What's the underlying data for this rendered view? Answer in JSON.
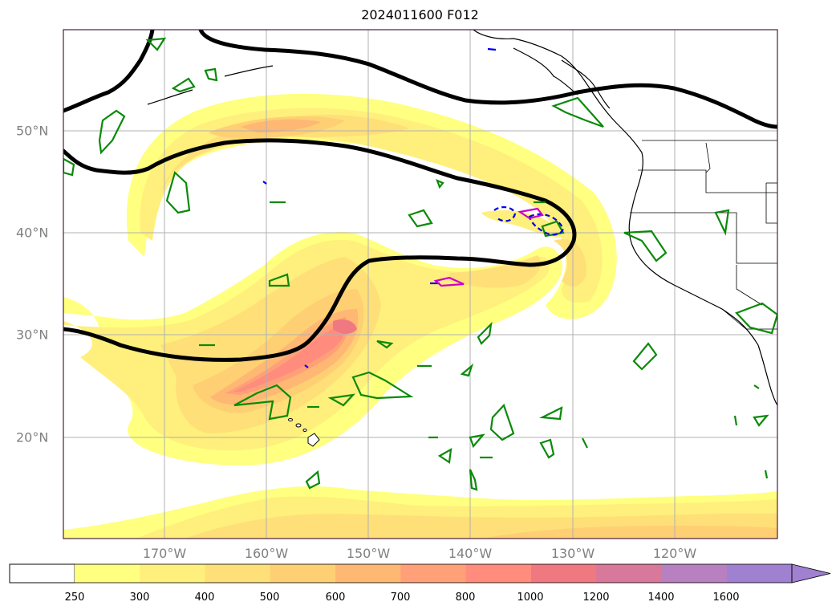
{
  "title": "2024011600 F012",
  "lon_labels": [
    "170°W",
    "160°W",
    "150°W",
    "140°W",
    "130°W",
    "120°W"
  ],
  "lat_labels": [
    "50°N",
    "40°N",
    "30°N",
    "20°N"
  ],
  "colorbar": {
    "ticks": [
      "250",
      "300",
      "400",
      "500",
      "600",
      "700",
      "800",
      "1000",
      "1200",
      "1400",
      "1600"
    ],
    "colors": [
      "#ffff80",
      "#ffef7c",
      "#ffdf78",
      "#ffcf74",
      "#ffb774",
      "#ffa078",
      "#ff8c7c",
      "#f07880",
      "#d8789a",
      "#b880c0",
      "#a080d0"
    ],
    "extend": "max"
  },
  "contour_colors": {
    "heavy_line": "#000000",
    "green": "#0a8a0a",
    "blue": "#0000ee",
    "magenta": "#cc00cc"
  }
}
